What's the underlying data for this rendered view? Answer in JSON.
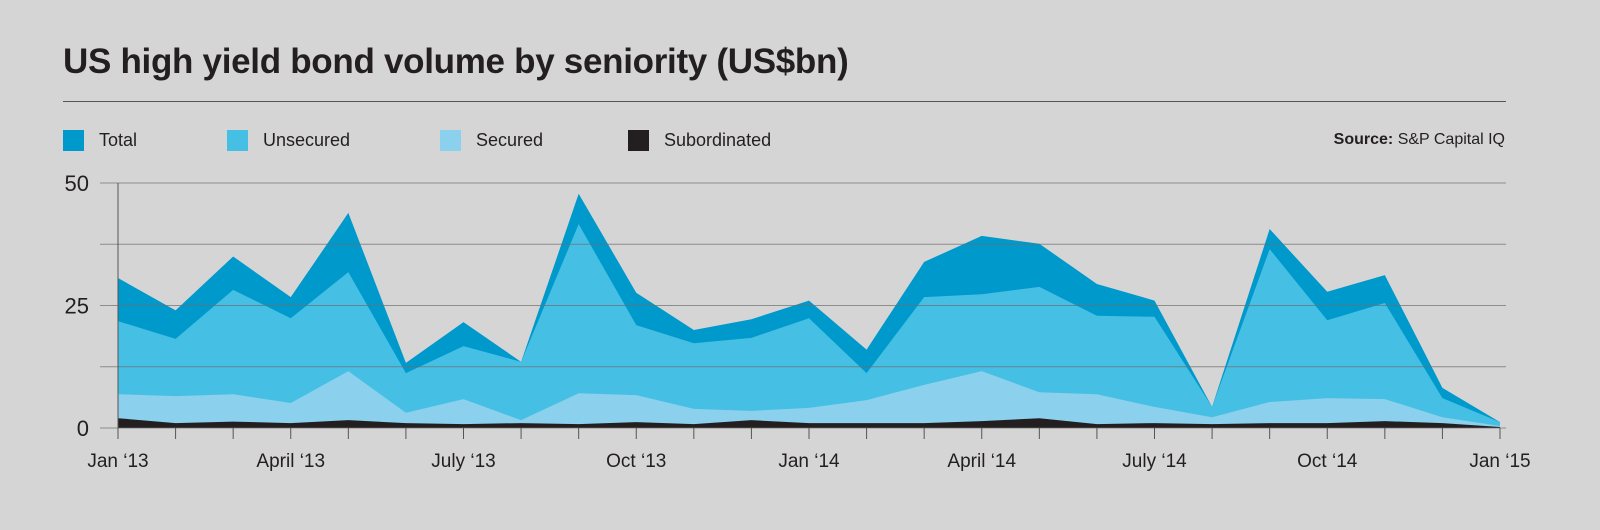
{
  "chart_data": {
    "type": "area",
    "title": "US high yield bond volume by seniority (US$bn)",
    "source_label": "Source:",
    "source_text": "S&P Capital IQ",
    "xlabel": "",
    "ylabel": "",
    "ylim": [
      0,
      50
    ],
    "yticks": [
      0,
      25,
      50
    ],
    "gridlines": [
      0,
      12.5,
      25,
      37.5,
      50
    ],
    "grid": true,
    "legend_position": "top",
    "x_tick_labels": [
      {
        "index": 0,
        "label": "Jan ‘13"
      },
      {
        "index": 3,
        "label": "April ‘13"
      },
      {
        "index": 6,
        "label": "July ‘13"
      },
      {
        "index": 9,
        "label": "Oct ‘13"
      },
      {
        "index": 12,
        "label": "Jan ‘14"
      },
      {
        "index": 15,
        "label": "April ‘14"
      },
      {
        "index": 18,
        "label": "July ‘14"
      },
      {
        "index": 21,
        "label": "Oct ‘14"
      },
      {
        "index": 24,
        "label": "Jan ‘15"
      }
    ],
    "x_count": 25,
    "series": [
      {
        "name": "Total",
        "color": "#0099cc",
        "values": [
          30.6,
          24,
          35,
          26.7,
          43.9,
          13.3,
          21.6,
          13.5,
          47.8,
          27.6,
          20,
          22.2,
          26,
          16,
          33.9,
          39.2,
          37.6,
          29.4,
          26,
          4.3,
          40.6,
          27.8,
          31.2,
          8.2,
          1.2
        ]
      },
      {
        "name": "Unsecured",
        "color": "#45bfe4",
        "values": [
          21.8,
          18.2,
          28.2,
          22.4,
          31.8,
          11.2,
          16.7,
          13.5,
          41.6,
          21,
          17.3,
          18.4,
          22.4,
          11.2,
          26.7,
          27.3,
          28.8,
          22.9,
          22.7,
          4.3,
          36.5,
          22,
          25.5,
          6.1,
          1.2
        ]
      },
      {
        "name": "Secured",
        "color": "#8bd0ec",
        "values": [
          6.9,
          6.5,
          6.9,
          5.1,
          11.6,
          3.1,
          5.9,
          1.6,
          7.1,
          6.7,
          3.9,
          3.5,
          4.1,
          5.7,
          8.8,
          11.6,
          7.3,
          6.9,
          4.3,
          2.2,
          5.3,
          6.1,
          5.9,
          2.2,
          0.4
        ]
      },
      {
        "name": "Subordinated",
        "color": "#231f20",
        "values": [
          2,
          1,
          1.3,
          1,
          1.6,
          1,
          0.8,
          1,
          0.8,
          1.2,
          0.8,
          1.6,
          1,
          1,
          1,
          1.4,
          2,
          0.8,
          1,
          0.8,
          1,
          1,
          1.4,
          1,
          0.2
        ]
      }
    ]
  }
}
